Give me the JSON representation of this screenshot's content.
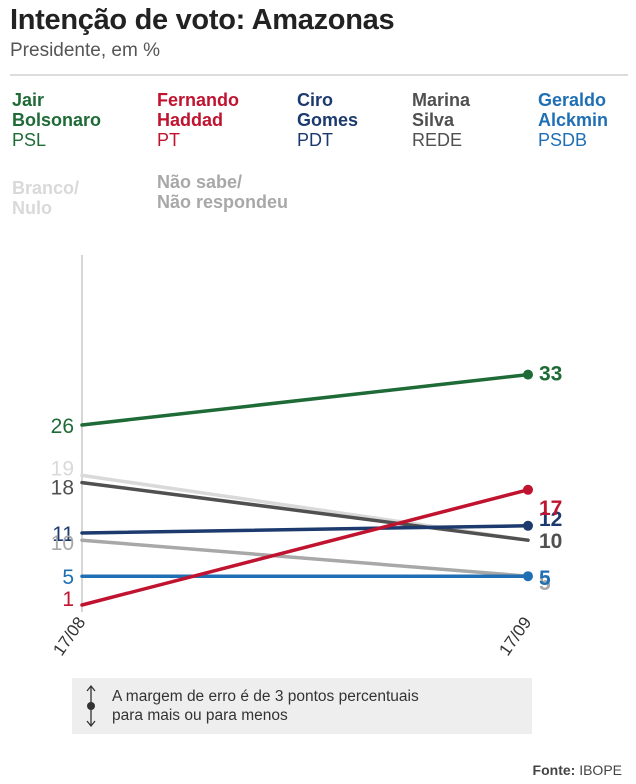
{
  "title": "Intenção de voto: Amazonas",
  "subtitle": "Presidente, em %",
  "legend": [
    {
      "name": "Jair\nBolsonaro",
      "party": "PSL",
      "color": "#1e6b37"
    },
    {
      "name": "Fernando\nHaddad",
      "party": "PT",
      "color": "#c0132f"
    },
    {
      "name": "Ciro\nGomes",
      "party": "PDT",
      "color": "#1c3a6e"
    },
    {
      "name": "Marina\nSilva",
      "party": "REDE",
      "color": "#505050"
    },
    {
      "name": "Geraldo\nAlckmin",
      "party": "PSDB",
      "color": "#1f6fb4"
    },
    {
      "name": "Branco/\nNulo",
      "party": "",
      "color": "#d9d9d9"
    },
    {
      "name": "Não sabe/\nNão respondeu",
      "party": "",
      "color": "#a8a8a8"
    }
  ],
  "chart_data": {
    "type": "line",
    "x": [
      "17/08",
      "17/09"
    ],
    "ylim": [
      0,
      45
    ],
    "series": [
      {
        "name": "Jair Bolsonaro",
        "values": [
          26,
          33
        ],
        "color": "#1e6b37",
        "start_label": "26",
        "end_label": "33"
      },
      {
        "name": "Branco/Nulo",
        "values": [
          19,
          10
        ],
        "color": "#d9d9d9",
        "start_label": "19",
        "end_label": "10"
      },
      {
        "name": "Marina Silva",
        "values": [
          18,
          10
        ],
        "color": "#505050",
        "start_label": "18",
        "end_label": "10"
      },
      {
        "name": "Ciro Gomes",
        "values": [
          11,
          12
        ],
        "color": "#1c3a6e",
        "start_label": "11",
        "end_label": "12"
      },
      {
        "name": "Não sabe/Não respondeu",
        "values": [
          10,
          5
        ],
        "color": "#a8a8a8",
        "start_label": "10",
        "end_label": "5"
      },
      {
        "name": "Geraldo Alckmin",
        "values": [
          5,
          5
        ],
        "color": "#1f6fb4",
        "start_label": "5",
        "end_label": "5"
      },
      {
        "name": "Fernando Haddad",
        "values": [
          1,
          17
        ],
        "color": "#c0132f",
        "start_label": "1",
        "end_label": "17"
      }
    ]
  },
  "note": "A margem de erro é de 3 pontos percentuais\npara mais ou para menos",
  "source_label": "Fonte:",
  "source_value": "IBOPE"
}
